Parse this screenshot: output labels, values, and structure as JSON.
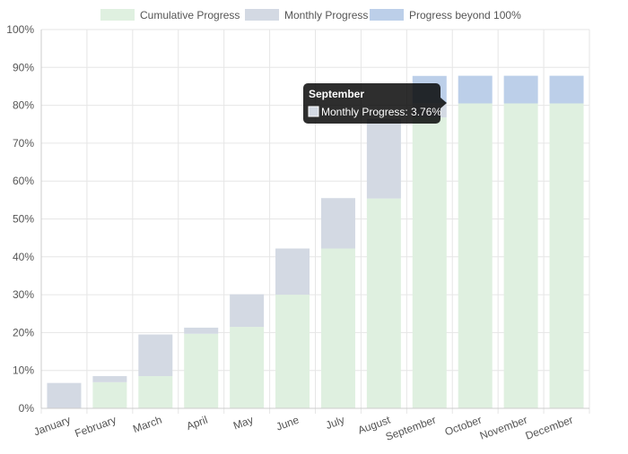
{
  "chart_data": {
    "type": "bar",
    "stacked": true,
    "categories": [
      "January",
      "February",
      "March",
      "April",
      "May",
      "June",
      "July",
      "August",
      "September",
      "October",
      "November",
      "December"
    ],
    "series": [
      {
        "name": "Cumulative Progress",
        "color": "#dff0e0",
        "values": [
          0,
          6.9,
          8.5,
          19.7,
          21.5,
          30,
          42.2,
          55.4,
          76.8,
          80.5,
          80.5,
          80.5
        ]
      },
      {
        "name": "Monthly Progress",
        "color": "#d3d9e3",
        "values": [
          6.7,
          1.6,
          11.0,
          1.6,
          8.6,
          12.2,
          13.3,
          21.0,
          3.76,
          0,
          0,
          0
        ]
      },
      {
        "name": "Progress beyond 100%",
        "color": "#bccfe9",
        "values": [
          0,
          0,
          0,
          0,
          0,
          0,
          0,
          0,
          7.2,
          7.3,
          7.3,
          7.3
        ]
      }
    ],
    "ylim": [
      0,
      100
    ],
    "yticks": [
      "0%",
      "10%",
      "20%",
      "30%",
      "40%",
      "50%",
      "60%",
      "70%",
      "80%",
      "90%",
      "100%"
    ],
    "legend_position": "top",
    "grid": true,
    "tooltip": {
      "title": "September",
      "body": "Monthly Progress: 3.76%"
    }
  }
}
